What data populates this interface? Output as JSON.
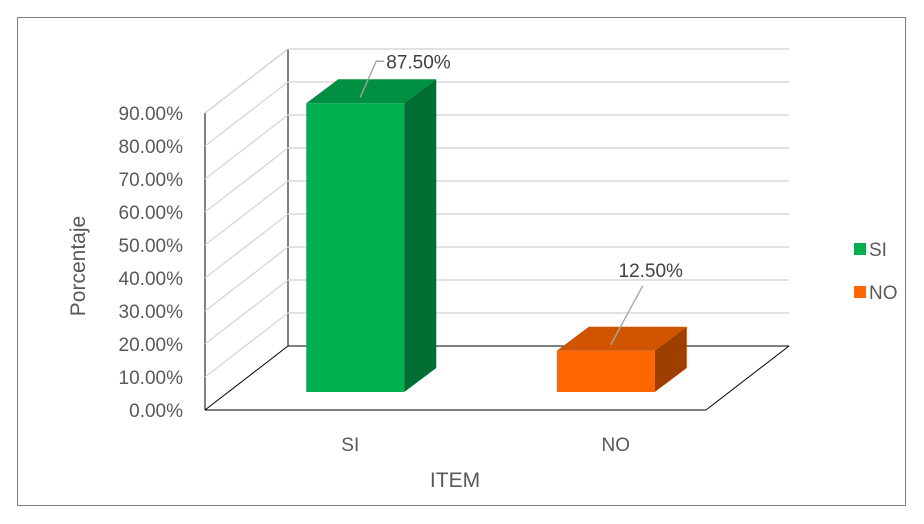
{
  "chart_data": {
    "type": "bar",
    "categories": [
      "SI",
      "NO"
    ],
    "values": [
      87.5,
      12.5
    ],
    "data_labels": [
      "87.50%",
      "12.50%"
    ],
    "colors": [
      "#00b050",
      "#ff6600"
    ],
    "xlabel": "ITEM",
    "ylabel": "Porcentaje",
    "ylim": [
      0,
      90
    ],
    "yticks": [
      "0.00%",
      "10.00%",
      "20.00%",
      "30.00%",
      "40.00%",
      "50.00%",
      "60.00%",
      "70.00%",
      "80.00%",
      "90.00%"
    ],
    "grid": true,
    "style": "3d-clustered-column",
    "legend": {
      "position": "right",
      "entries": [
        {
          "label": "SI",
          "color": "#00b050"
        },
        {
          "label": "NO",
          "color": "#ff6600"
        }
      ]
    }
  }
}
